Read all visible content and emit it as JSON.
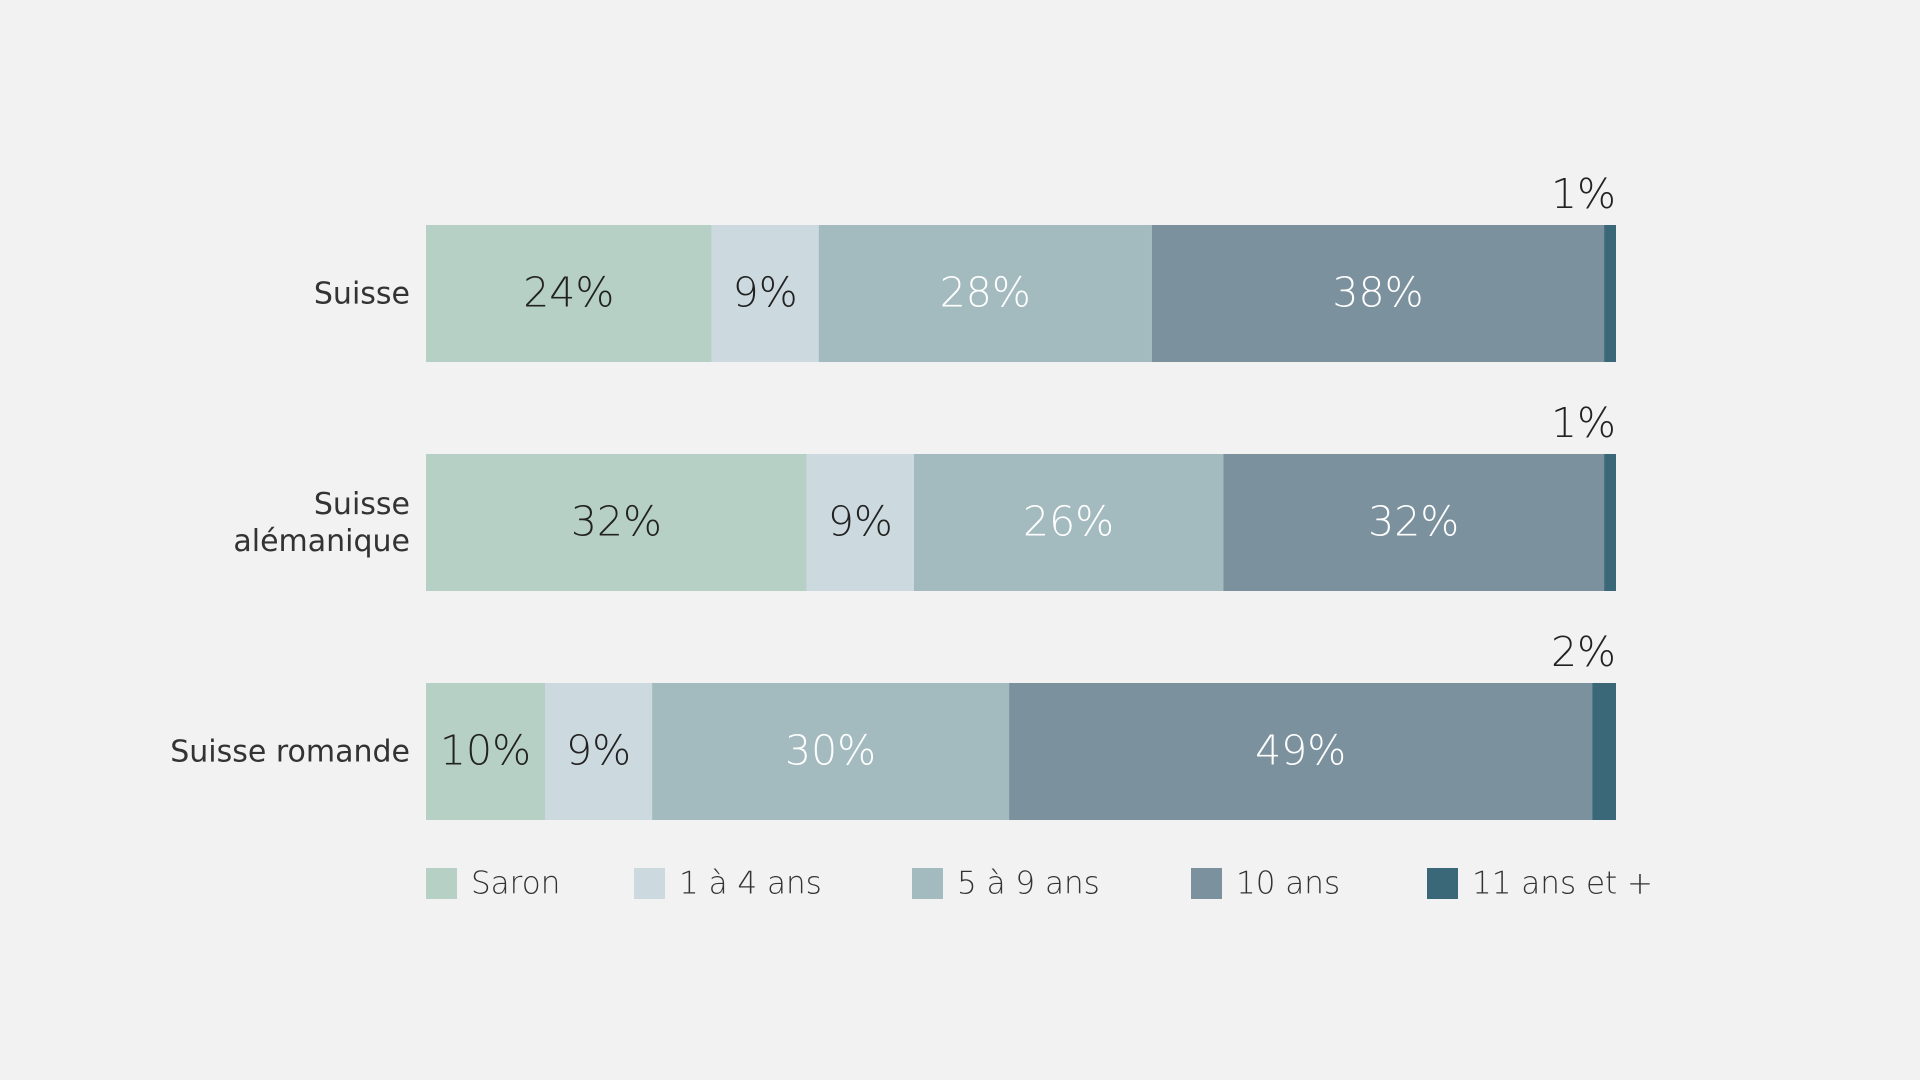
{
  "chart_data": {
    "type": "stacked-bar-horizontal",
    "categories": [
      "Suisse",
      "Suisse alémanique",
      "Suisse romande"
    ],
    "series": [
      {
        "name": "Saron",
        "color": "#b7d0c6",
        "label_color": "#222222",
        "values": [
          24,
          32,
          10
        ],
        "value_labels": [
          "24%",
          "32%",
          "10%"
        ]
      },
      {
        "name": "1 à 4 ans",
        "color": "#ccdadf",
        "label_color": "#222222",
        "values": [
          9,
          9,
          9
        ],
        "value_labels": [
          "9%",
          "9%",
          "9%"
        ]
      },
      {
        "name": "5 à 9 ans",
        "color": "#a3bbbf",
        "label_color": "#ffffff",
        "values": [
          28,
          26,
          30
        ],
        "value_labels": [
          "28%",
          "26%",
          "30%"
        ]
      },
      {
        "name": "10 ans",
        "color": "#7b919d",
        "label_color": "#ffffff",
        "values": [
          38,
          32,
          49
        ],
        "value_labels": [
          "38%",
          "32%",
          "49%"
        ]
      },
      {
        "name": "11 ans et +",
        "color": "#3a6878",
        "label_color": "#222222",
        "values": [
          1,
          1,
          2
        ],
        "value_labels": [
          "1%",
          "1%",
          "2%"
        ]
      }
    ],
    "legend": "bottom"
  }
}
